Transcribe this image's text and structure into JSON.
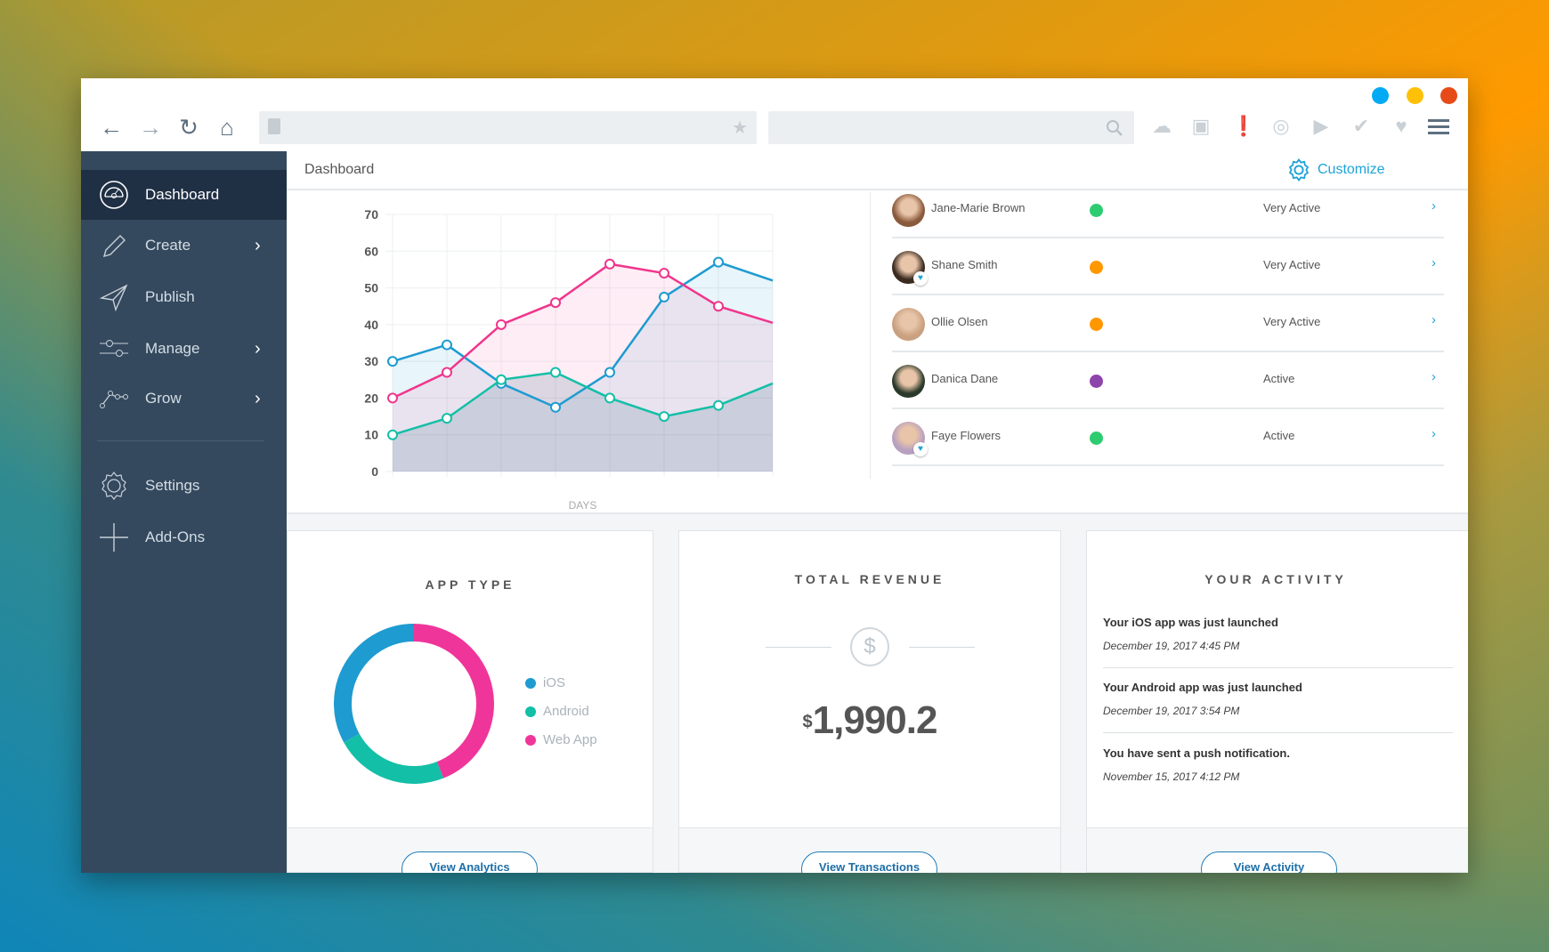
{
  "window": {
    "controls": [
      {
        "name": "minimize",
        "color": "#03a9f4"
      },
      {
        "name": "maximize",
        "color": "#ffc107"
      },
      {
        "name": "close",
        "color": "#e64a19"
      }
    ]
  },
  "toolbar": {
    "url_value": "",
    "search_value": "",
    "icons": [
      "cloud-upload-icon",
      "camera-icon",
      "alert-icon",
      "broadcast-icon",
      "play-store-icon",
      "shield-check-icon",
      "heart-icon",
      "menu-icon"
    ]
  },
  "sidebar": {
    "items": [
      {
        "label": "Dashboard",
        "icon": "gauge-icon",
        "active": true
      },
      {
        "label": "Create",
        "icon": "pencil-icon",
        "chevron": true
      },
      {
        "label": "Publish",
        "icon": "paper-plane-icon"
      },
      {
        "label": "Manage",
        "icon": "sliders-icon",
        "chevron": true
      },
      {
        "label": "Grow",
        "icon": "growth-icon",
        "chevron": true
      },
      {
        "label": "Settings",
        "icon": "gear-icon"
      },
      {
        "label": "Add-Ons",
        "icon": "plus-icon"
      }
    ]
  },
  "header": {
    "title": "Dashboard",
    "customize": "Customize"
  },
  "users": [
    {
      "name": "Jane-Marie Brown",
      "status_color": "#2ecc71",
      "activity": "Very Active",
      "favorite": false
    },
    {
      "name": "Shane Smith",
      "status_color": "#ff9800",
      "activity": "Very Active",
      "favorite": true
    },
    {
      "name": "Ollie Olsen",
      "status_color": "#ff9800",
      "activity": "Very Active",
      "favorite": false
    },
    {
      "name": "Danica Dane",
      "status_color": "#8e44ad",
      "activity": "Active",
      "favorite": false
    },
    {
      "name": "Faye Flowers",
      "status_color": "#2ecc71",
      "activity": "Active",
      "favorite": true
    }
  ],
  "chart_data": {
    "type": "area",
    "xlabel": "DAYS",
    "ylabel": "",
    "ylim": [
      0,
      70
    ],
    "yticks": [
      "0",
      "10",
      "20",
      "30",
      "40",
      "50",
      "60",
      "70"
    ],
    "grid": true,
    "x": [
      1,
      2,
      3,
      4,
      5,
      6,
      7,
      8
    ],
    "series": [
      {
        "color": "#1e9bd0",
        "fill": "rgba(30,155,208,0.10)",
        "values": [
          30,
          34.5,
          24,
          17.5,
          27,
          47.5,
          57,
          52
        ]
      },
      {
        "color": "#f0358c",
        "fill": "rgba(240,53,140,0.09)",
        "values": [
          20,
          27,
          40,
          46,
          56.5,
          54,
          45,
          40.5
        ]
      },
      {
        "color": "#13bfa6",
        "fill": "rgba(60,110,140,0.18)",
        "values": [
          10,
          14.5,
          25,
          27,
          20,
          15,
          18,
          24
        ]
      }
    ]
  },
  "cards": {
    "app_type": {
      "title": "APP TYPE",
      "button": "View Analytics",
      "chart_data": {
        "type": "pie",
        "labels": [
          "iOS",
          "Android",
          "Web App"
        ],
        "values": [
          33,
          23,
          44
        ],
        "colors": [
          "#1e9bd0",
          "#13bfa6",
          "#f0359a"
        ]
      }
    },
    "revenue": {
      "title": "TOTAL REVENUE",
      "currency": "$",
      "amount": "1,990.2",
      "button": "View Transactions"
    },
    "activity": {
      "title": "YOUR ACTIVITY",
      "button": "View Activity",
      "items": [
        {
          "text": "Your iOS app was just launched",
          "date": "December 19, 2017 4:45 PM"
        },
        {
          "text": "Your Android app was just launched",
          "date": "December 19, 2017 3:54 PM"
        },
        {
          "text": "You have sent a push notification.",
          "date": "November 15, 2017 4:12 PM"
        }
      ]
    }
  }
}
